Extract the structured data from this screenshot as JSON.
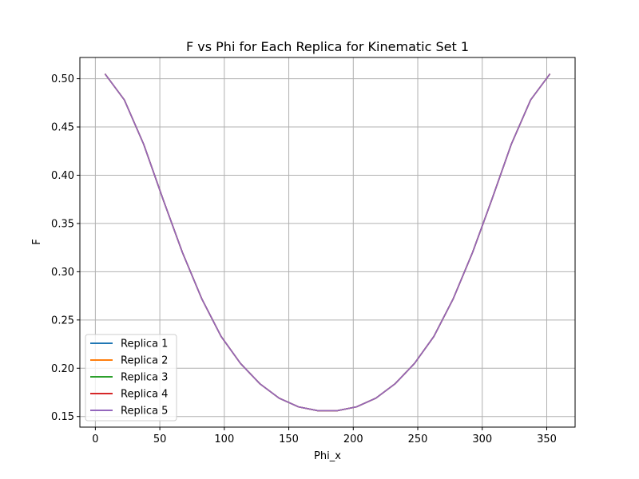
{
  "chart_data": {
    "type": "line",
    "title": "F vs Phi for Each Replica for Kinematic Set 1",
    "xlabel": "Phi_x",
    "ylabel": "F",
    "xlim": [
      -12,
      372
    ],
    "ylim": [
      0.139,
      0.522
    ],
    "xticks": [
      0,
      50,
      100,
      150,
      200,
      250,
      300,
      350
    ],
    "yticks": [
      0.15,
      0.2,
      0.25,
      0.3,
      0.35,
      0.4,
      0.45,
      0.5
    ],
    "grid": true,
    "legend_position": "lower-left",
    "x": [
      7.5,
      22.5,
      37.5,
      52.5,
      67.5,
      82.5,
      97.5,
      112.5,
      127.5,
      142.5,
      157.5,
      172.5,
      187.5,
      202.5,
      217.5,
      232.5,
      247.5,
      262.5,
      277.5,
      292.5,
      307.5,
      322.5,
      337.5,
      352.5
    ],
    "series": [
      {
        "name": "Replica 1",
        "color": "#1f77b4",
        "values": [
          0.505,
          0.478,
          0.432,
          0.375,
          0.32,
          0.272,
          0.233,
          0.205,
          0.184,
          0.169,
          0.16,
          0.156,
          0.156,
          0.16,
          0.169,
          0.184,
          0.205,
          0.233,
          0.272,
          0.32,
          0.375,
          0.432,
          0.478,
          0.505
        ]
      },
      {
        "name": "Replica 2",
        "color": "#ff7f0e",
        "values": [
          0.505,
          0.478,
          0.432,
          0.375,
          0.32,
          0.272,
          0.233,
          0.205,
          0.184,
          0.169,
          0.16,
          0.156,
          0.156,
          0.16,
          0.169,
          0.184,
          0.205,
          0.233,
          0.272,
          0.32,
          0.375,
          0.432,
          0.478,
          0.505
        ]
      },
      {
        "name": "Replica 3",
        "color": "#2ca02c",
        "values": [
          0.505,
          0.478,
          0.432,
          0.375,
          0.32,
          0.272,
          0.233,
          0.205,
          0.184,
          0.169,
          0.16,
          0.156,
          0.156,
          0.16,
          0.169,
          0.184,
          0.205,
          0.233,
          0.272,
          0.32,
          0.375,
          0.432,
          0.478,
          0.505
        ]
      },
      {
        "name": "Replica 4",
        "color": "#d62728",
        "values": [
          0.505,
          0.478,
          0.432,
          0.375,
          0.32,
          0.272,
          0.233,
          0.205,
          0.184,
          0.169,
          0.16,
          0.156,
          0.156,
          0.16,
          0.169,
          0.184,
          0.205,
          0.233,
          0.272,
          0.32,
          0.375,
          0.432,
          0.478,
          0.505
        ]
      },
      {
        "name": "Replica 5",
        "color": "#9467bd",
        "values": [
          0.505,
          0.478,
          0.432,
          0.375,
          0.32,
          0.272,
          0.233,
          0.205,
          0.184,
          0.169,
          0.16,
          0.156,
          0.156,
          0.16,
          0.169,
          0.184,
          0.205,
          0.233,
          0.272,
          0.32,
          0.375,
          0.432,
          0.478,
          0.505
        ]
      }
    ]
  }
}
